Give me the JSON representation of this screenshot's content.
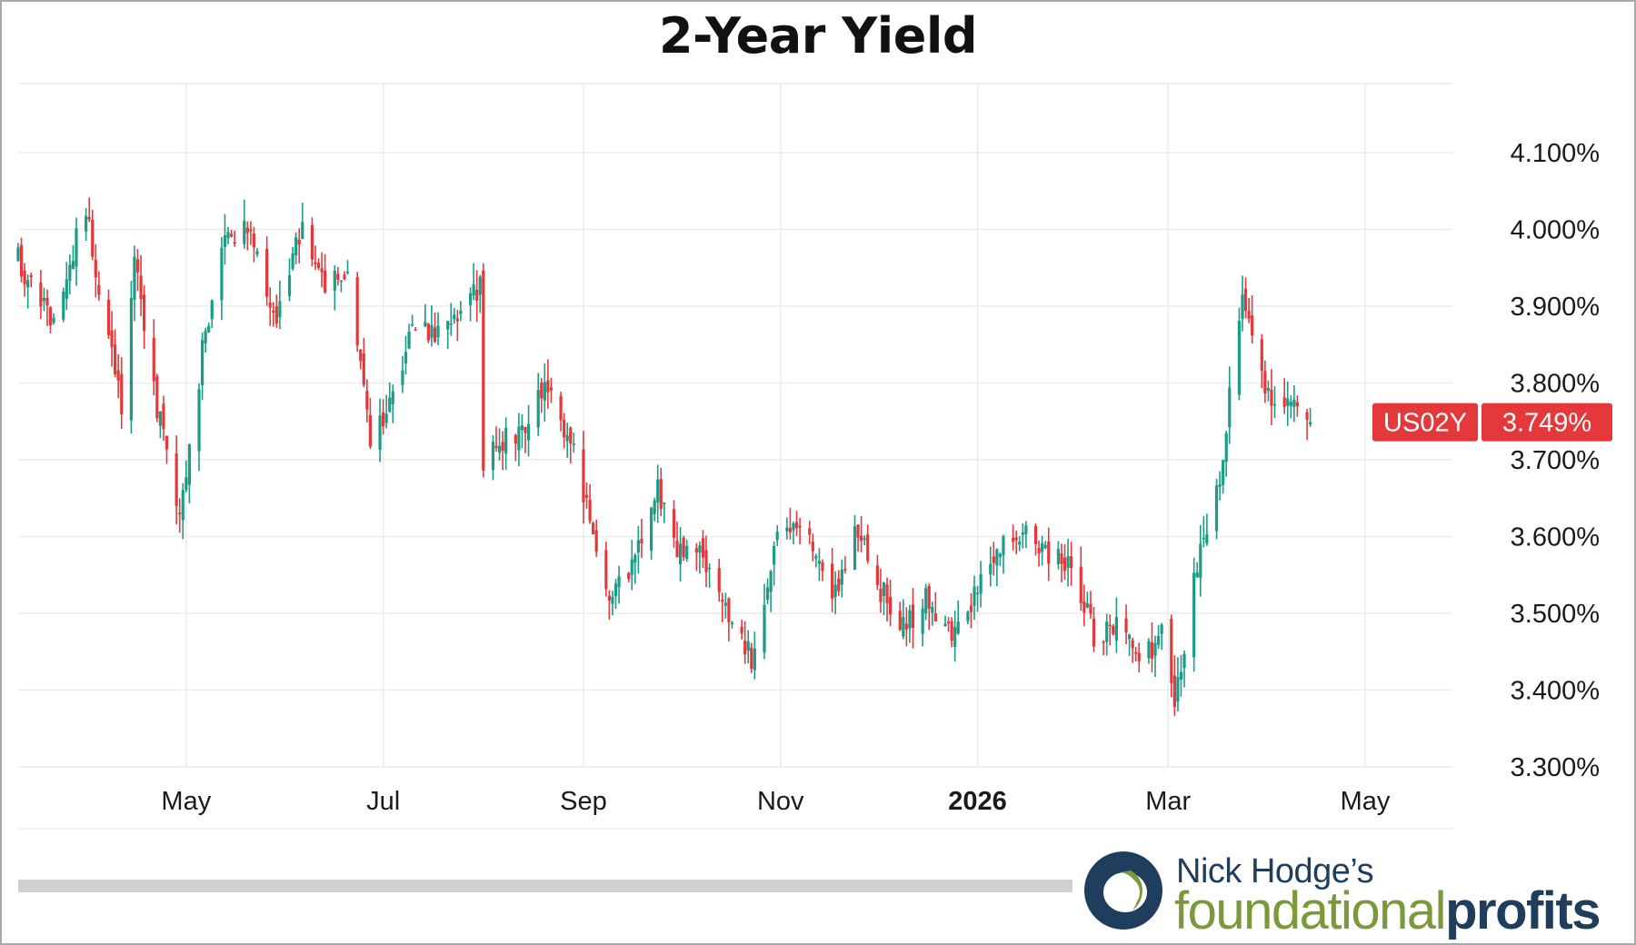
{
  "colors": {
    "up": "#1a9c86",
    "down": "#e5383b",
    "grid": "#ececec",
    "price_tag": "#e5383b"
  },
  "logo": {
    "line1": "Nick Hodge’s",
    "line2_a": "foundational",
    "line2_b": "profits"
  },
  "chart_data": {
    "type": "candlestick",
    "title": "2-Year Yield",
    "symbol": "US02Y",
    "last_value_label": "3.749%",
    "y_unit": "%",
    "ylim": [
      3.3,
      4.19
    ],
    "y_ticks": [
      "4.100%",
      "4.000%",
      "3.900%",
      "3.800%",
      "3.700%",
      "3.600%",
      "3.500%",
      "3.400%",
      "3.300%"
    ],
    "y_tick_values": [
      4.1,
      4.0,
      3.9,
      3.8,
      3.7,
      3.6,
      3.5,
      3.4,
      3.3
    ],
    "x_tick_labels": [
      "May",
      "Jul",
      "Sep",
      "Nov",
      "2026",
      "Mar",
      "May"
    ],
    "x_tick_dates": [
      "2025-05-01",
      "2025-07-01",
      "2025-09-01",
      "2025-11-01",
      "2026-01-01",
      "2026-03-01",
      "2026-05-01"
    ],
    "xlim": [
      "2025-03-10",
      "2026-05-28"
    ],
    "grid": true,
    "legend": "none",
    "series": [
      {
        "key_dates": [
          "2025-03-10",
          "2025-03-20",
          "2025-03-31",
          "2025-04-04",
          "2025-04-08",
          "2025-04-11",
          "2025-04-15",
          "2025-04-22",
          "2025-04-29",
          "2025-05-06",
          "2025-05-12",
          "2025-05-20",
          "2025-05-29",
          "2025-06-06",
          "2025-06-13",
          "2025-06-20",
          "2025-06-27",
          "2025-07-03",
          "2025-07-10",
          "2025-07-17",
          "2025-07-24",
          "2025-07-31",
          "2025-08-01",
          "2025-08-05",
          "2025-08-13",
          "2025-08-20",
          "2025-08-28",
          "2025-09-05",
          "2025-09-10",
          "2025-09-17",
          "2025-09-24",
          "2025-09-30",
          "2025-10-07",
          "2025-10-16",
          "2025-10-23",
          "2025-10-31",
          "2025-11-10",
          "2025-11-17",
          "2025-11-24",
          "2025-12-02",
          "2025-12-09",
          "2025-12-16",
          "2025-12-23",
          "2025-12-31",
          "2026-01-09",
          "2026-01-16",
          "2026-01-23",
          "2026-01-30",
          "2026-02-06",
          "2026-02-13",
          "2026-02-20",
          "2026-02-27",
          "2026-03-03",
          "2026-03-10",
          "2026-03-17",
          "2026-03-20",
          "2026-03-24",
          "2026-03-27",
          "2026-04-02",
          "2026-04-08",
          "2026-04-14"
        ],
        "key_values": [
          3.96,
          3.88,
          4.03,
          3.92,
          3.85,
          3.76,
          3.96,
          3.77,
          3.62,
          3.84,
          3.98,
          4.0,
          3.88,
          4.01,
          3.93,
          3.94,
          3.73,
          3.77,
          3.88,
          3.86,
          3.89,
          3.93,
          3.7,
          3.72,
          3.74,
          3.79,
          3.73,
          3.59,
          3.52,
          3.57,
          3.66,
          3.58,
          3.59,
          3.49,
          3.44,
          3.61,
          3.6,
          3.51,
          3.62,
          3.53,
          3.48,
          3.52,
          3.47,
          3.52,
          3.59,
          3.61,
          3.58,
          3.57,
          3.47,
          3.49,
          3.44,
          3.47,
          3.39,
          3.56,
          3.68,
          3.78,
          3.93,
          3.86,
          3.76,
          3.79,
          3.749
        ]
      }
    ]
  }
}
